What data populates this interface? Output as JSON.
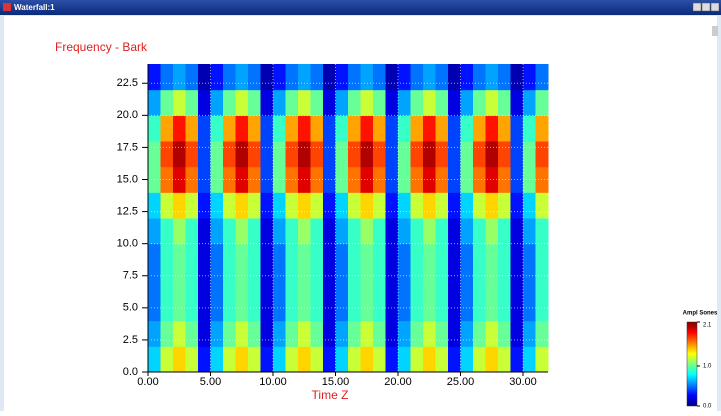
{
  "window": {
    "title": "Waterfall:1"
  },
  "chart_data": {
    "type": "heatmap",
    "y_label": "Frequency - Bark",
    "x_label": "Time Z",
    "xlim": [
      0,
      32
    ],
    "ylim": [
      0,
      24
    ],
    "xticks": [
      {
        "value": 0,
        "label": "0.00"
      },
      {
        "value": 5,
        "label": "5.00"
      },
      {
        "value": 10,
        "label": "10.00"
      },
      {
        "value": 15,
        "label": "15.00"
      },
      {
        "value": 20,
        "label": "20.00"
      },
      {
        "value": 25,
        "label": "25.00"
      },
      {
        "value": 30,
        "label": "30.00"
      }
    ],
    "yticks": [
      {
        "value": 0,
        "label": "0.0"
      },
      2.5,
      {
        "value": 5,
        "label": "5.0"
      },
      7.5,
      {
        "value": 10,
        "label": "10.0"
      },
      12.5,
      {
        "value": 15,
        "label": "15.0"
      },
      17.5,
      {
        "value": 20,
        "label": "20.0"
      },
      22.5
    ],
    "grid": true,
    "x_bins": [
      0,
      1,
      2,
      3,
      4,
      5,
      6,
      7,
      8,
      9,
      10,
      11,
      12,
      13,
      14,
      15,
      16,
      17,
      18,
      19,
      20,
      21,
      22,
      23,
      24,
      25,
      26,
      27,
      28,
      29,
      30,
      31,
      32
    ],
    "y_bins": [
      0,
      2,
      4,
      6,
      8,
      10,
      12,
      14,
      16,
      18,
      20,
      22,
      24
    ],
    "z": [
      [
        0.7,
        1.2,
        1.4,
        1.2,
        0.3,
        0.7,
        1.2,
        1.4,
        1.2,
        0.3,
        0.7,
        1.2,
        1.4,
        1.2,
        0.3,
        0.7,
        1.2,
        1.4,
        1.2,
        0.3,
        0.7,
        1.2,
        1.4,
        1.2,
        0.3,
        0.7,
        1.2,
        1.4,
        1.2,
        0.3,
        0.7,
        1.2
      ],
      [
        0.6,
        1.0,
        1.2,
        1.0,
        0.2,
        0.6,
        1.0,
        1.2,
        1.0,
        0.2,
        0.6,
        1.0,
        1.2,
        1.0,
        0.2,
        0.6,
        1.0,
        1.2,
        1.0,
        0.2,
        0.6,
        1.0,
        1.2,
        1.0,
        0.2,
        0.6,
        1.0,
        1.2,
        1.0,
        0.2,
        0.6,
        1.0
      ],
      [
        0.5,
        0.9,
        1.0,
        0.9,
        0.2,
        0.5,
        0.9,
        1.0,
        0.9,
        0.2,
        0.5,
        0.9,
        1.0,
        0.9,
        0.2,
        0.5,
        0.9,
        1.0,
        0.9,
        0.2,
        0.5,
        0.9,
        1.0,
        0.9,
        0.2,
        0.5,
        0.9,
        1.0,
        0.9,
        0.2,
        0.5,
        0.9
      ],
      [
        0.5,
        0.9,
        1.0,
        0.9,
        0.2,
        0.5,
        0.9,
        1.0,
        0.9,
        0.2,
        0.5,
        0.9,
        1.0,
        0.9,
        0.2,
        0.5,
        0.9,
        1.0,
        0.9,
        0.2,
        0.5,
        0.9,
        1.0,
        0.9,
        0.2,
        0.5,
        0.9,
        1.0,
        0.9,
        0.2,
        0.5,
        0.9
      ],
      [
        0.5,
        0.9,
        1.0,
        0.9,
        0.2,
        0.5,
        0.9,
        1.0,
        0.9,
        0.2,
        0.5,
        0.9,
        1.0,
        0.9,
        0.2,
        0.5,
        0.9,
        1.0,
        0.9,
        0.2,
        0.5,
        0.9,
        1.0,
        0.9,
        0.2,
        0.5,
        0.9,
        1.0,
        0.9,
        0.2,
        0.5,
        0.9
      ],
      [
        0.6,
        0.9,
        1.1,
        0.9,
        0.2,
        0.6,
        0.9,
        1.1,
        0.9,
        0.2,
        0.6,
        0.9,
        1.1,
        0.9,
        0.2,
        0.6,
        0.9,
        1.1,
        0.9,
        0.2,
        0.6,
        0.9,
        1.1,
        0.9,
        0.2,
        0.6,
        0.9,
        1.1,
        0.9,
        0.2,
        0.6,
        0.9
      ],
      [
        0.7,
        1.2,
        1.4,
        1.2,
        0.3,
        0.7,
        1.2,
        1.4,
        1.2,
        0.3,
        0.7,
        1.2,
        1.4,
        1.2,
        0.3,
        0.7,
        1.2,
        1.4,
        1.2,
        0.3,
        0.7,
        1.2,
        1.4,
        1.2,
        0.3,
        0.7,
        1.2,
        1.4,
        1.2,
        0.3,
        0.7,
        1.2
      ],
      [
        1.0,
        1.6,
        1.9,
        1.6,
        0.4,
        1.0,
        1.6,
        1.9,
        1.6,
        0.4,
        1.0,
        1.6,
        1.9,
        1.6,
        0.4,
        1.0,
        1.6,
        1.9,
        1.6,
        0.4,
        1.0,
        1.6,
        1.9,
        1.6,
        0.4,
        1.0,
        1.6,
        1.9,
        1.6,
        0.4,
        1.0,
        1.6
      ],
      [
        1.0,
        1.7,
        2.0,
        1.7,
        0.4,
        1.0,
        1.7,
        2.0,
        1.7,
        0.4,
        1.0,
        1.7,
        2.0,
        1.7,
        0.4,
        1.0,
        1.7,
        2.0,
        1.7,
        0.4,
        1.0,
        1.7,
        2.0,
        1.7,
        0.4,
        1.0,
        1.7,
        2.0,
        1.7,
        0.4,
        1.0,
        1.7
      ],
      [
        0.9,
        1.5,
        1.8,
        1.5,
        0.4,
        0.9,
        1.5,
        1.8,
        1.5,
        0.4,
        0.9,
        1.5,
        1.8,
        1.5,
        0.4,
        0.9,
        1.5,
        1.8,
        1.5,
        0.4,
        0.9,
        1.5,
        1.8,
        1.5,
        0.4,
        0.9,
        1.5,
        1.8,
        1.5,
        0.4,
        0.9,
        1.5
      ],
      [
        0.6,
        1.0,
        1.2,
        1.0,
        0.2,
        0.6,
        1.0,
        1.2,
        1.0,
        0.2,
        0.6,
        1.0,
        1.2,
        1.0,
        0.2,
        0.6,
        1.0,
        1.2,
        1.0,
        0.2,
        0.6,
        1.0,
        1.2,
        1.0,
        0.2,
        0.6,
        1.0,
        1.2,
        1.0,
        0.2,
        0.6,
        1.0
      ],
      [
        0.3,
        0.5,
        0.6,
        0.5,
        0.1,
        0.3,
        0.5,
        0.6,
        0.5,
        0.1,
        0.3,
        0.5,
        0.6,
        0.5,
        0.1,
        0.3,
        0.5,
        0.6,
        0.5,
        0.1,
        0.3,
        0.5,
        0.6,
        0.5,
        0.1,
        0.3,
        0.5,
        0.6,
        0.5,
        0.1,
        0.3,
        0.5
      ]
    ],
    "colorbar_title": "Ampl Sones",
    "zlim": [
      0,
      2.1
    ],
    "zticks": [
      2.1,
      {
        "value": 1,
        "label": "1.0"
      },
      {
        "value": 0,
        "label": "0.0"
      }
    ]
  }
}
